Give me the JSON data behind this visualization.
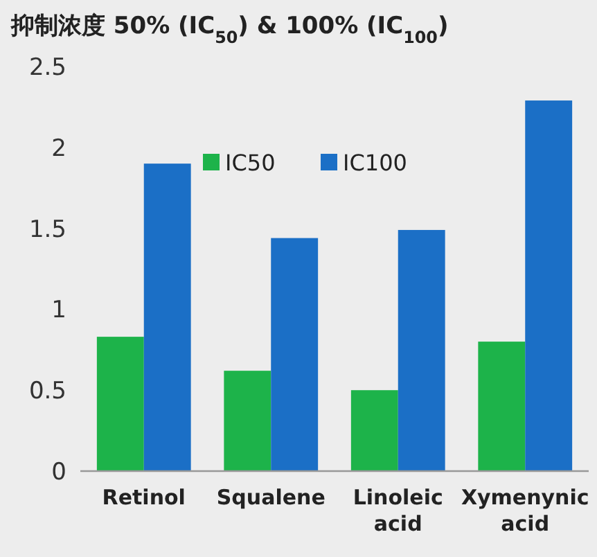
{
  "chart_data": {
    "type": "bar",
    "title": "抑制浓度 50% (IC$_{50}$) & 100% (IC$_{100}$)",
    "categories": [
      "Retinol",
      "Squalene",
      "Linoleic acid",
      "Xymenynic acid"
    ],
    "series": [
      {
        "name": "IC50",
        "color": "#1db34a",
        "values": [
          0.83,
          0.62,
          0.5,
          0.8
        ]
      },
      {
        "name": "IC100",
        "color": "#1b6fc6",
        "values": [
          1.9,
          1.44,
          1.49,
          2.29
        ]
      }
    ],
    "ylim": [
      0,
      2.5
    ],
    "yticks": [
      0,
      0.5,
      1,
      1.5,
      2,
      2.5
    ],
    "legend": "top"
  }
}
